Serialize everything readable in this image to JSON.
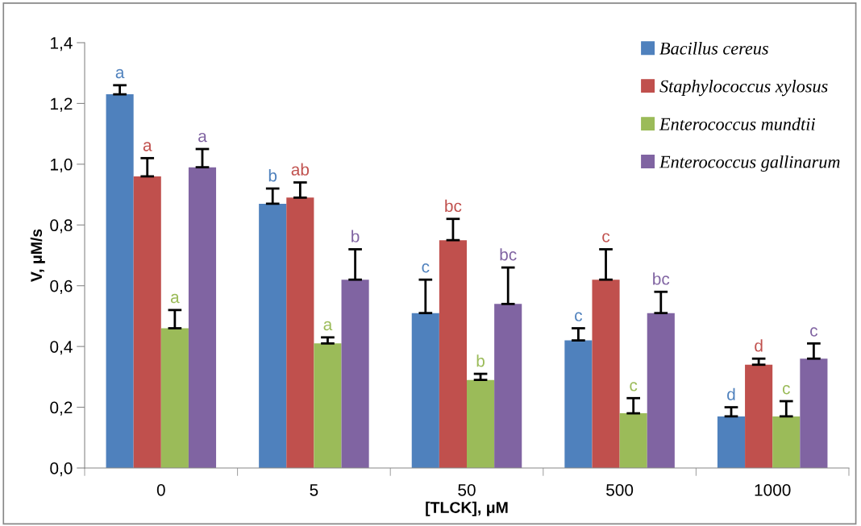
{
  "chart_data": {
    "type": "bar",
    "xlabel": "[TLCK], μM",
    "ylabel": "V, μM/s",
    "categories": [
      "0",
      "5",
      "50",
      "500",
      "1000"
    ],
    "series": [
      {
        "name": "Bacillus cereus",
        "color": "#4f81bd",
        "values": [
          1.23,
          0.87,
          0.51,
          0.42,
          0.17
        ],
        "errors": [
          [
            1.23,
            1.26
          ],
          [
            0.87,
            0.92
          ],
          [
            0.51,
            0.62
          ],
          [
            0.42,
            0.46
          ],
          [
            0.17,
            0.2
          ]
        ],
        "value_labels": [
          "a",
          "b",
          "c",
          "c",
          "d"
        ]
      },
      {
        "name": "Staphylococcus xylosus",
        "color": "#c0504d",
        "values": [
          0.96,
          0.89,
          0.75,
          0.62,
          0.34
        ],
        "errors": [
          [
            0.96,
            1.02
          ],
          [
            0.89,
            0.94
          ],
          [
            0.75,
            0.82
          ],
          [
            0.62,
            0.72
          ],
          [
            0.34,
            0.36
          ]
        ],
        "value_labels": [
          "a",
          "ab",
          "bc",
          "c",
          "d"
        ]
      },
      {
        "name": "Enterococcus mundtii",
        "color": "#9bbb59",
        "values": [
          0.46,
          0.41,
          0.29,
          0.18,
          0.17
        ],
        "errors": [
          [
            0.46,
            0.52
          ],
          [
            0.41,
            0.43
          ],
          [
            0.29,
            0.31
          ],
          [
            0.18,
            0.23
          ],
          [
            0.17,
            0.22
          ]
        ],
        "value_labels": [
          "a",
          "a",
          "b",
          "c",
          "c"
        ]
      },
      {
        "name": "Enterococcus gallinarum",
        "color": "#8064a2",
        "values": [
          0.99,
          0.62,
          0.54,
          0.51,
          0.36
        ],
        "errors": [
          [
            0.99,
            1.05
          ],
          [
            0.62,
            0.72
          ],
          [
            0.54,
            0.66
          ],
          [
            0.51,
            0.58
          ],
          [
            0.36,
            0.41
          ]
        ],
        "value_labels": [
          "a",
          "b",
          "bc",
          "bc",
          "c"
        ]
      }
    ],
    "ylim": [
      0,
      1.4
    ],
    "yticks": [
      {
        "value": 0,
        "label": "0,0"
      },
      {
        "value": 0.2,
        "label": "0,2"
      },
      {
        "value": 0.4,
        "label": "0,4"
      },
      {
        "value": 0.6,
        "label": "0,6"
      },
      {
        "value": 0.8,
        "label": "0,8"
      },
      {
        "value": 1.0,
        "label": "1,0"
      },
      {
        "value": 1.2,
        "label": "1,2"
      },
      {
        "value": 1.4,
        "label": "1,4"
      }
    ],
    "grid": false,
    "legend": "top right"
  }
}
